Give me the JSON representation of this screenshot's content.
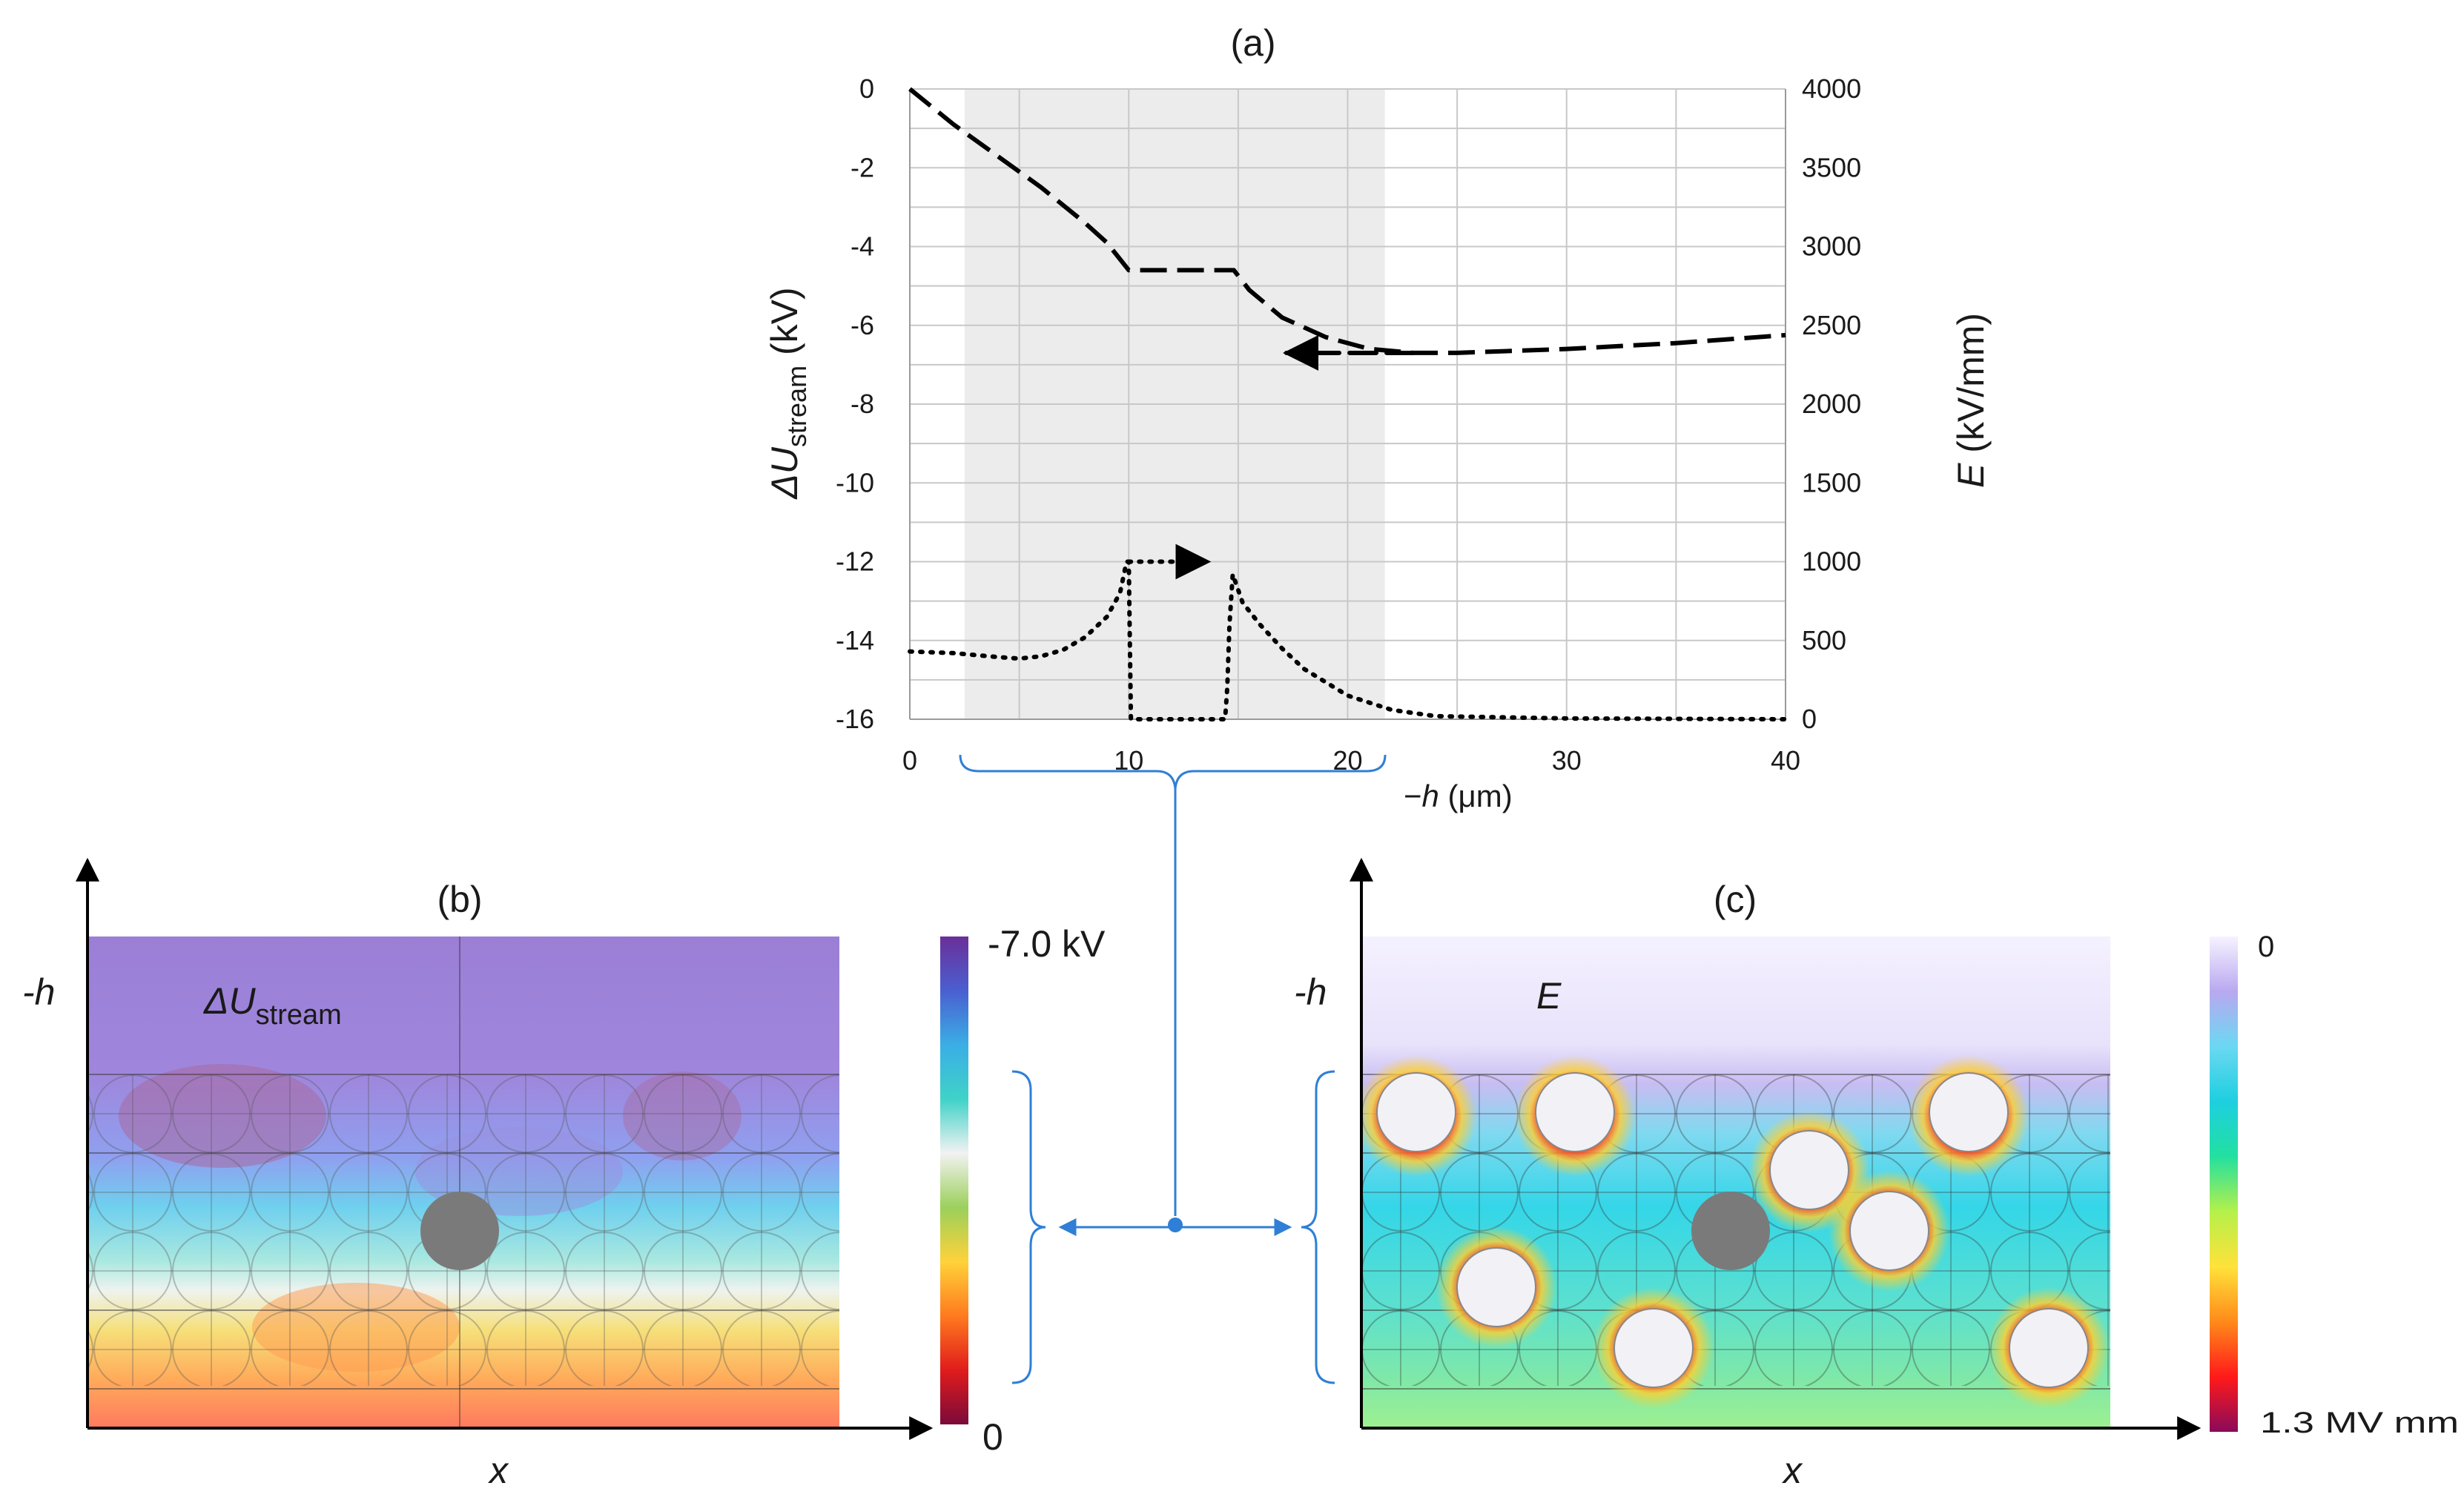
{
  "panels": {
    "a": {
      "title": "(a)"
    },
    "b": {
      "title": "(b)",
      "field_label": "ΔU",
      "field_sub": "stream",
      "y_label": "-h",
      "x_label": "x",
      "colorbar": {
        "top_label": "-7.0 kV",
        "bottom_label": "0",
        "colors": [
          "#6a2f9a",
          "#4a5fd0",
          "#3aaee6",
          "#3fd2c8",
          "#f2f2f2",
          "#9bd05a",
          "#ffd23a",
          "#ff7a1e",
          "#e01c1c",
          "#7a0a3a"
        ]
      }
    },
    "c": {
      "title": "(c)",
      "field_label": "E",
      "y_label": "-h",
      "x_label": "x",
      "colorbar": {
        "top_label": "0",
        "bottom_label": "1.3 MV mm",
        "colors": [
          "#f6f3ff",
          "#b9a8f0",
          "#6bd8f2",
          "#1ecfe0",
          "#22e0a0",
          "#b6f04a",
          "#ffe23a",
          "#ff8a1a",
          "#ff1a1a",
          "#8a0a5a"
        ]
      }
    }
  },
  "chart_data": {
    "type": "line",
    "title": "(a)",
    "xlabel_prefix": "−",
    "xlabel_var": "h",
    "xlabel_unit": " (μm)",
    "ylabel_left_main": "ΔU",
    "ylabel_left_sub": "stream",
    "ylabel_left_unit": " (kV)",
    "ylabel_right_var": "E",
    "ylabel_right_unit": " (kV/mm)",
    "xlim": [
      0,
      40
    ],
    "ylim_left": [
      -16,
      0
    ],
    "ylim_right": [
      0,
      4000
    ],
    "x_ticks": [
      0,
      10,
      20,
      30,
      40
    ],
    "y_left_ticks": [
      0,
      -2,
      -4,
      -6,
      -8,
      -10,
      -12,
      -14,
      -16
    ],
    "y_right_ticks": [
      4000,
      3500,
      3000,
      2500,
      2000,
      1500,
      1000,
      500,
      0
    ],
    "shaded_region": [
      2.5,
      21.7
    ],
    "series": [
      {
        "name": "ΔU_stream",
        "axis": "left",
        "style": "dashed",
        "x": [
          0,
          2,
          4,
          6,
          8,
          9,
          10,
          12,
          14.8,
          15.5,
          17,
          19,
          21,
          23,
          25,
          30,
          35,
          40
        ],
        "y": [
          0,
          -0.9,
          -1.7,
          -2.5,
          -3.4,
          -3.9,
          -4.6,
          -4.6,
          -4.6,
          -5.1,
          -5.8,
          -6.3,
          -6.6,
          -6.7,
          -6.7,
          -6.6,
          -6.45,
          -6.25
        ]
      },
      {
        "name": "E",
        "axis": "right",
        "style": "dotted",
        "x": [
          0,
          2,
          4,
          5,
          6,
          7,
          8,
          9,
          9.6,
          9.9,
          10,
          10.05,
          10.1,
          14.4,
          14.5,
          14.6,
          14.75,
          15,
          15.2,
          16,
          17,
          18,
          20,
          22,
          24,
          30,
          40
        ],
        "y": [
          430,
          420,
          395,
          385,
          400,
          440,
          520,
          650,
          800,
          1000,
          1000,
          500,
          0,
          0,
          200,
          600,
          920,
          820,
          740,
          600,
          450,
          320,
          150,
          60,
          20,
          5,
          0
        ]
      }
    ],
    "annotations": [
      {
        "text": "arrow-left",
        "x_from": 23,
        "x_to": 17.2,
        "y": -6.7,
        "axis": "left"
      },
      {
        "text": "arrow-right",
        "x_from": 10,
        "x_to": 13.6,
        "y": 1000,
        "axis": "right"
      }
    ]
  }
}
